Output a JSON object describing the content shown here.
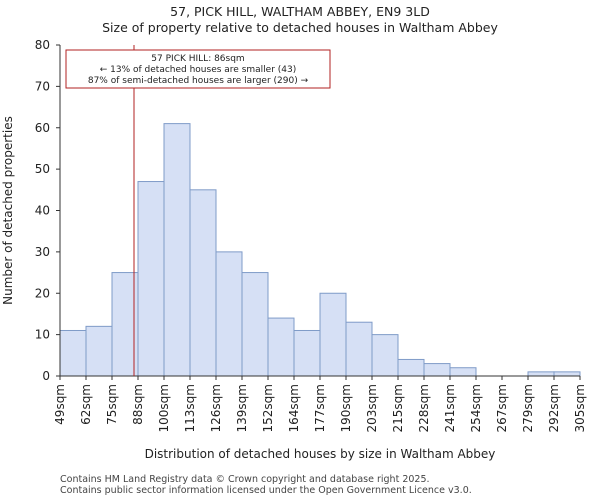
{
  "title_line1": "57, PICK HILL, WALTHAM ABBEY, EN9 3LD",
  "title_line2": "Size of property relative to detached houses in Waltham Abbey",
  "footer_line1": "Contains HM Land Registry data © Crown copyright and database right 2025.",
  "footer_line2": "Contains public sector information licensed under the Open Government Licence v3.0.",
  "colors": {
    "bar_fill": "#d6e0f5",
    "bar_stroke": "#7f9bc8",
    "marker": "#b22222",
    "annotation_border": "#b22222"
  },
  "chart_data": {
    "type": "bar",
    "title": "Size of property relative to detached houses in Waltham Abbey",
    "xlabel": "Distribution of detached houses by size in Waltham Abbey",
    "ylabel": "Number of detached properties",
    "ylim": [
      0,
      80
    ],
    "yticks": [
      0,
      10,
      20,
      30,
      40,
      50,
      60,
      70,
      80
    ],
    "bin_edges": [
      49,
      62,
      75,
      88,
      100,
      113,
      126,
      139,
      152,
      164,
      177,
      190,
      203,
      215,
      228,
      241,
      254,
      267,
      279,
      292,
      305
    ],
    "tick_labels": [
      "49sqm",
      "62sqm",
      "75sqm",
      "88sqm",
      "100sqm",
      "113sqm",
      "126sqm",
      "139sqm",
      "152sqm",
      "164sqm",
      "177sqm",
      "190sqm",
      "203sqm",
      "215sqm",
      "228sqm",
      "241sqm",
      "254sqm",
      "267sqm",
      "279sqm",
      "292sqm",
      "305sqm"
    ],
    "values": [
      11,
      12,
      25,
      47,
      61,
      45,
      30,
      25,
      14,
      11,
      20,
      13,
      10,
      4,
      3,
      2,
      0,
      0,
      1,
      1
    ],
    "marker_value": 86,
    "annotation": {
      "line1": "57 PICK HILL: 86sqm",
      "line2": "← 13% of detached houses are smaller (43)",
      "line3": "87% of semi-detached houses are larger (290) →"
    }
  }
}
